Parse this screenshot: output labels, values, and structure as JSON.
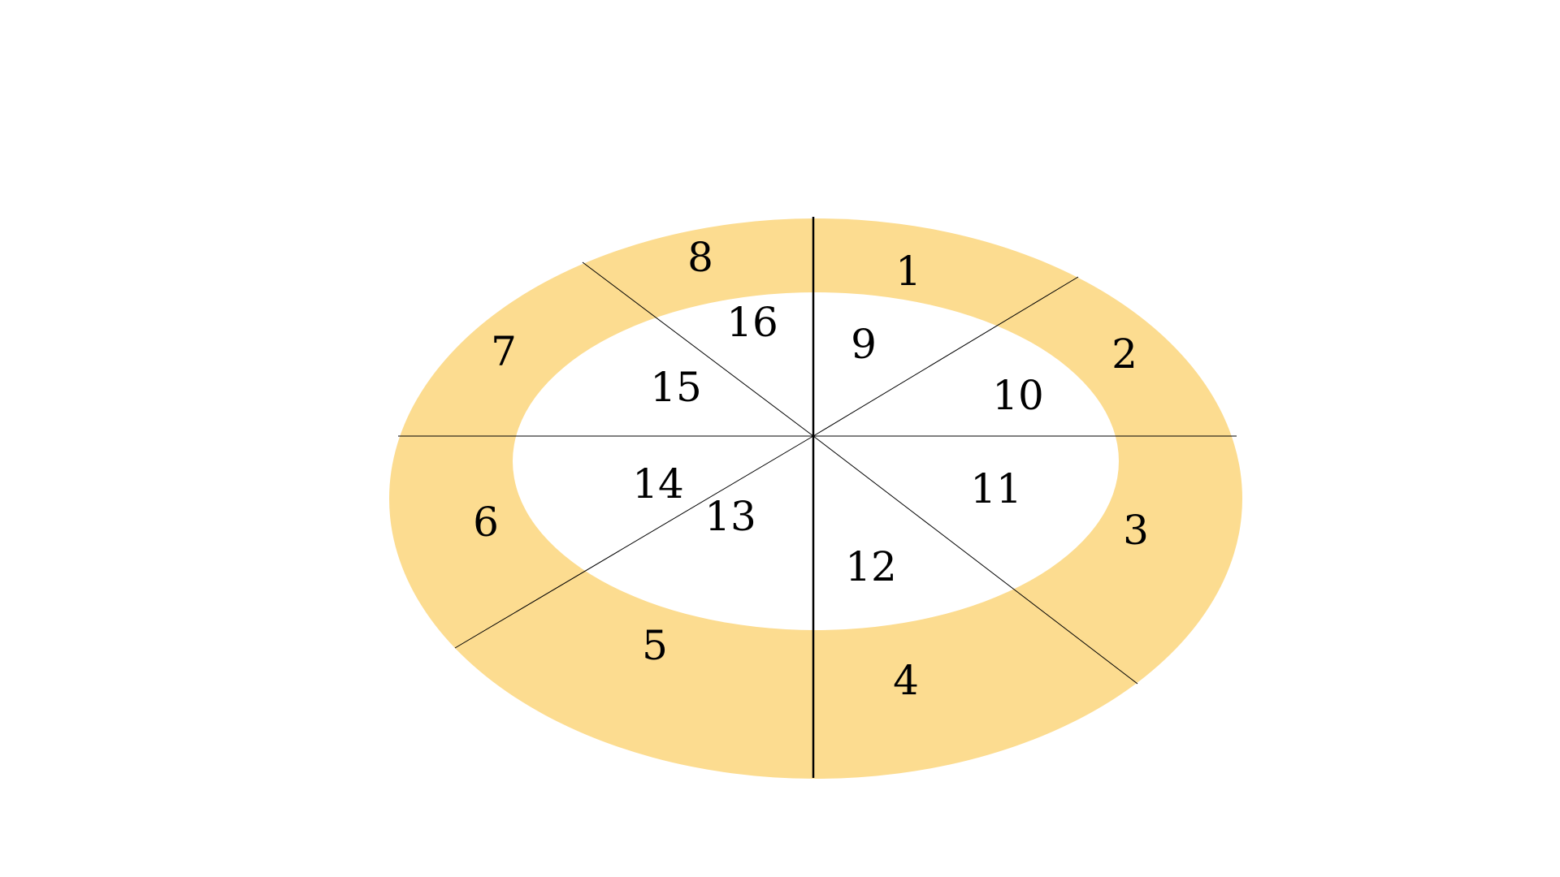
{
  "diagram": {
    "colors": {
      "outer_ring": "#fcdc90",
      "inner_region": "#ffffff",
      "background": "#ffffff",
      "lines": "#000000"
    },
    "outer_segments": [
      {
        "id": 1,
        "label": "1"
      },
      {
        "id": 2,
        "label": "2"
      },
      {
        "id": 3,
        "label": "3"
      },
      {
        "id": 4,
        "label": "4"
      },
      {
        "id": 5,
        "label": "5"
      },
      {
        "id": 6,
        "label": "6"
      },
      {
        "id": 7,
        "label": "7"
      },
      {
        "id": 8,
        "label": "8"
      }
    ],
    "inner_segments": [
      {
        "id": 9,
        "label": "9"
      },
      {
        "id": 10,
        "label": "10"
      },
      {
        "id": 11,
        "label": "11"
      },
      {
        "id": 12,
        "label": "12"
      },
      {
        "id": 13,
        "label": "13"
      },
      {
        "id": 14,
        "label": "14"
      },
      {
        "id": 15,
        "label": "15"
      },
      {
        "id": 16,
        "label": "16"
      }
    ]
  }
}
